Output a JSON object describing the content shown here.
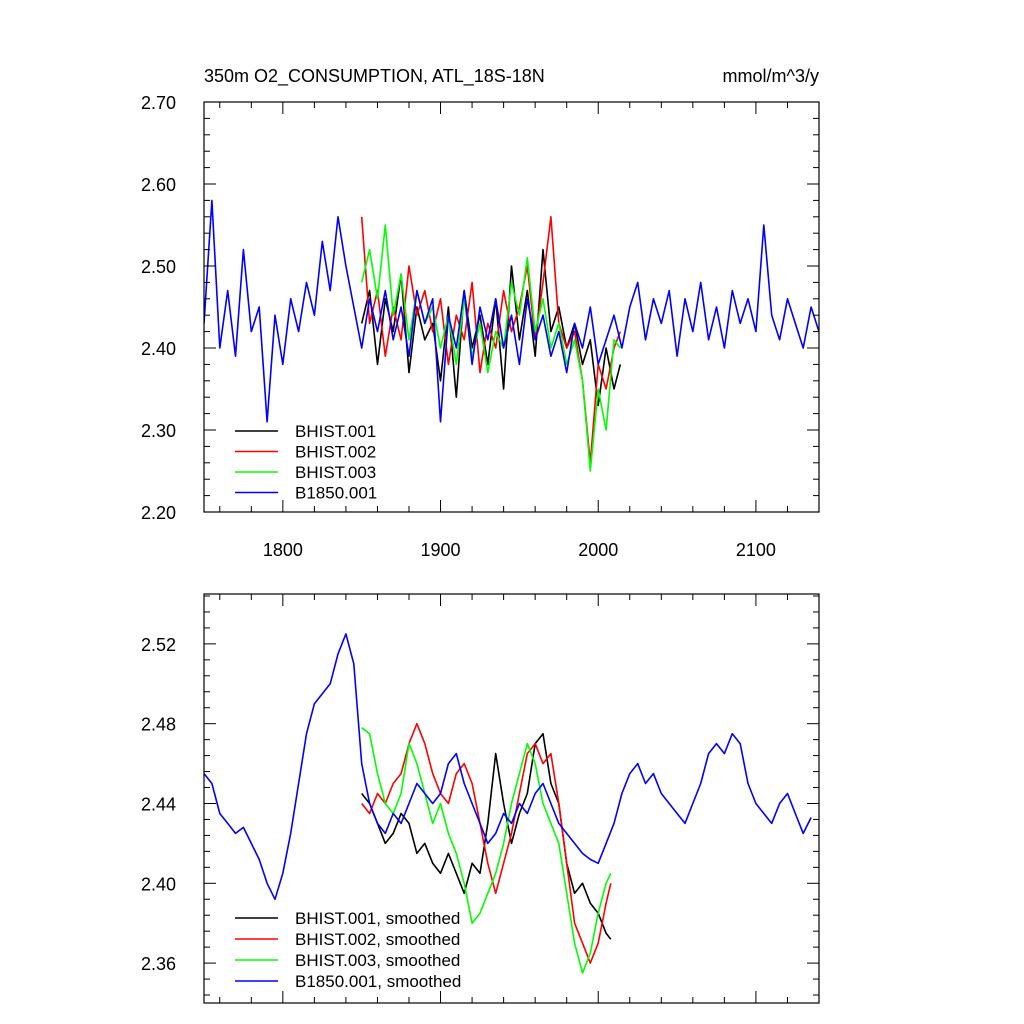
{
  "chart_data": [
    {
      "type": "line",
      "title": "350m O2_CONSUMPTION, ATL_18S-18N",
      "units": "mmol/m^3/y",
      "xlabel": "",
      "ylabel": "",
      "xlim": [
        1750,
        2140
      ],
      "ylim": [
        2.2,
        2.7
      ],
      "xticks": [
        1800,
        1900,
        2000,
        2100
      ],
      "xtick_labels": [
        "1800",
        "1900",
        "2000",
        "2100"
      ],
      "yticks": [
        2.2,
        2.3,
        2.4,
        2.5,
        2.6,
        2.7
      ],
      "ytick_labels": [
        "2.20",
        "2.30",
        "2.40",
        "2.50",
        "2.60",
        "2.70"
      ],
      "legend_position": "bottom-left",
      "series": [
        {
          "name": "BHIST.001",
          "color": "#000000",
          "x": [
            1850,
            1855,
            1860,
            1865,
            1870,
            1875,
            1880,
            1885,
            1890,
            1895,
            1900,
            1905,
            1910,
            1915,
            1920,
            1925,
            1930,
            1935,
            1940,
            1945,
            1950,
            1955,
            1960,
            1965,
            1970,
            1975,
            1980,
            1985,
            1990,
            1995,
            2000,
            2005,
            2010,
            2014
          ],
          "y": [
            2.43,
            2.47,
            2.38,
            2.46,
            2.42,
            2.49,
            2.37,
            2.45,
            2.41,
            2.43,
            2.36,
            2.45,
            2.34,
            2.47,
            2.4,
            2.44,
            2.38,
            2.46,
            2.35,
            2.5,
            2.41,
            2.47,
            2.39,
            2.52,
            2.42,
            2.45,
            2.4,
            2.43,
            2.38,
            2.41,
            2.33,
            2.4,
            2.35,
            2.38
          ]
        },
        {
          "name": "BHIST.002",
          "color": "#ff0000",
          "x": [
            1850,
            1855,
            1860,
            1865,
            1870,
            1875,
            1880,
            1885,
            1890,
            1895,
            1900,
            1905,
            1910,
            1915,
            1920,
            1925,
            1930,
            1935,
            1940,
            1945,
            1950,
            1955,
            1960,
            1965,
            1970,
            1975,
            1980,
            1985,
            1990,
            1995,
            2000,
            2005,
            2010,
            2014
          ],
          "y": [
            2.56,
            2.43,
            2.47,
            2.39,
            2.45,
            2.41,
            2.5,
            2.44,
            2.47,
            2.42,
            2.46,
            2.38,
            2.44,
            2.41,
            2.48,
            2.37,
            2.43,
            2.4,
            2.47,
            2.42,
            2.45,
            2.5,
            2.41,
            2.48,
            2.56,
            2.43,
            2.4,
            2.42,
            2.36,
            2.26,
            2.38,
            2.35,
            2.4,
            2.42
          ]
        },
        {
          "name": "BHIST.003",
          "color": "#00ff00",
          "x": [
            1850,
            1855,
            1860,
            1865,
            1870,
            1875,
            1880,
            1885,
            1890,
            1895,
            1900,
            1905,
            1910,
            1915,
            1920,
            1925,
            1930,
            1935,
            1940,
            1945,
            1950,
            1955,
            1960,
            1965,
            1970,
            1975,
            1980,
            1985,
            1990,
            1995,
            2000,
            2005,
            2010,
            2014
          ],
          "y": [
            2.48,
            2.52,
            2.46,
            2.55,
            2.44,
            2.49,
            2.41,
            2.47,
            2.43,
            2.45,
            2.4,
            2.44,
            2.38,
            2.46,
            2.39,
            2.43,
            2.37,
            2.42,
            2.4,
            2.48,
            2.44,
            2.51,
            2.42,
            2.46,
            2.4,
            2.43,
            2.38,
            2.41,
            2.36,
            2.25,
            2.35,
            2.3,
            2.41,
            2.4
          ]
        },
        {
          "name": "B1850.001",
          "color": "#0000ff",
          "x": [
            1750,
            1755,
            1760,
            1765,
            1770,
            1775,
            1780,
            1785,
            1790,
            1795,
            1800,
            1805,
            1810,
            1815,
            1820,
            1825,
            1830,
            1835,
            1840,
            1845,
            1850,
            1855,
            1860,
            1865,
            1870,
            1875,
            1880,
            1885,
            1890,
            1895,
            1900,
            1905,
            1910,
            1915,
            1920,
            1925,
            1930,
            1935,
            1940,
            1945,
            1950,
            1955,
            1960,
            1965,
            1970,
            1975,
            1980,
            1985,
            1990,
            1995,
            2000,
            2005,
            2010,
            2015,
            2020,
            2025,
            2030,
            2035,
            2040,
            2045,
            2050,
            2055,
            2060,
            2065,
            2070,
            2075,
            2080,
            2085,
            2090,
            2095,
            2100,
            2105,
            2110,
            2115,
            2120,
            2125,
            2130,
            2135,
            2140
          ],
          "y": [
            2.43,
            2.58,
            2.4,
            2.47,
            2.39,
            2.52,
            2.42,
            2.45,
            2.31,
            2.44,
            2.38,
            2.46,
            2.42,
            2.48,
            2.44,
            2.53,
            2.47,
            2.56,
            2.5,
            2.45,
            2.4,
            2.46,
            2.42,
            2.47,
            2.41,
            2.45,
            2.39,
            2.47,
            2.43,
            2.46,
            2.31,
            2.44,
            2.4,
            2.47,
            2.38,
            2.45,
            2.41,
            2.46,
            2.4,
            2.44,
            2.38,
            2.46,
            2.41,
            2.44,
            2.39,
            2.42,
            2.37,
            2.43,
            2.4,
            2.45,
            2.38,
            2.41,
            2.44,
            2.4,
            2.45,
            2.48,
            2.41,
            2.46,
            2.43,
            2.47,
            2.39,
            2.46,
            2.42,
            2.48,
            2.41,
            2.45,
            2.4,
            2.47,
            2.43,
            2.46,
            2.42,
            2.55,
            2.44,
            2.41,
            2.46,
            2.43,
            2.4,
            2.45,
            2.42
          ]
        }
      ]
    },
    {
      "type": "line",
      "title": "",
      "xlabel": "",
      "ylabel": "",
      "xlim": [
        1750,
        2140
      ],
      "ylim": [
        2.34,
        2.545
      ],
      "xticks": [
        1800,
        1900,
        2000,
        2100
      ],
      "yticks": [
        2.36,
        2.4,
        2.44,
        2.48,
        2.52
      ],
      "ytick_labels": [
        "2.36",
        "2.40",
        "2.44",
        "2.48",
        "2.52"
      ],
      "legend_position": "bottom-left",
      "series": [
        {
          "name": "BHIST.001, smoothed",
          "color": "#000000",
          "x": [
            1850,
            1855,
            1860,
            1865,
            1870,
            1875,
            1880,
            1885,
            1890,
            1895,
            1900,
            1905,
            1910,
            1915,
            1920,
            1925,
            1930,
            1935,
            1940,
            1945,
            1950,
            1955,
            1960,
            1965,
            1970,
            1975,
            1980,
            1985,
            1990,
            1995,
            2000,
            2005,
            2008
          ],
          "y": [
            2.445,
            2.44,
            2.43,
            2.42,
            2.425,
            2.435,
            2.43,
            2.415,
            2.42,
            2.41,
            2.405,
            2.415,
            2.405,
            2.395,
            2.41,
            2.405,
            2.43,
            2.465,
            2.44,
            2.42,
            2.435,
            2.445,
            2.47,
            2.475,
            2.45,
            2.44,
            2.41,
            2.395,
            2.4,
            2.39,
            2.385,
            2.375,
            2.372
          ]
        },
        {
          "name": "BHIST.002, smoothed",
          "color": "#ff0000",
          "x": [
            1850,
            1855,
            1860,
            1865,
            1870,
            1875,
            1880,
            1885,
            1890,
            1895,
            1900,
            1905,
            1910,
            1915,
            1920,
            1925,
            1930,
            1935,
            1940,
            1945,
            1950,
            1955,
            1960,
            1965,
            1970,
            1975,
            1980,
            1985,
            1990,
            1995,
            2000,
            2005,
            2008
          ],
          "y": [
            2.44,
            2.435,
            2.445,
            2.44,
            2.45,
            2.455,
            2.47,
            2.48,
            2.47,
            2.455,
            2.445,
            2.44,
            2.455,
            2.46,
            2.45,
            2.43,
            2.41,
            2.395,
            2.41,
            2.425,
            2.445,
            2.465,
            2.47,
            2.46,
            2.465,
            2.44,
            2.41,
            2.38,
            2.37,
            2.36,
            2.37,
            2.39,
            2.4
          ]
        },
        {
          "name": "BHIST.003, smoothed",
          "color": "#00ff00",
          "x": [
            1850,
            1855,
            1860,
            1865,
            1870,
            1875,
            1880,
            1885,
            1890,
            1895,
            1900,
            1905,
            1910,
            1915,
            1920,
            1925,
            1930,
            1935,
            1940,
            1945,
            1950,
            1955,
            1960,
            1965,
            1970,
            1975,
            1980,
            1985,
            1990,
            1995,
            2000,
            2005,
            2008
          ],
          "y": [
            2.478,
            2.475,
            2.455,
            2.44,
            2.435,
            2.445,
            2.47,
            2.46,
            2.445,
            2.43,
            2.44,
            2.425,
            2.415,
            2.4,
            2.38,
            2.385,
            2.395,
            2.405,
            2.42,
            2.44,
            2.455,
            2.47,
            2.46,
            2.44,
            2.43,
            2.42,
            2.395,
            2.37,
            2.355,
            2.365,
            2.385,
            2.4,
            2.405
          ]
        },
        {
          "name": "B1850.001, smoothed",
          "color": "#0000ff",
          "x": [
            1750,
            1755,
            1760,
            1765,
            1770,
            1775,
            1780,
            1785,
            1790,
            1795,
            1800,
            1805,
            1810,
            1815,
            1820,
            1825,
            1830,
            1835,
            1840,
            1845,
            1850,
            1855,
            1860,
            1865,
            1870,
            1875,
            1880,
            1885,
            1890,
            1895,
            1900,
            1905,
            1910,
            1915,
            1920,
            1925,
            1930,
            1935,
            1940,
            1945,
            1950,
            1955,
            1960,
            1965,
            1970,
            1975,
            1980,
            1985,
            1990,
            1995,
            2000,
            2005,
            2010,
            2015,
            2020,
            2025,
            2030,
            2035,
            2040,
            2045,
            2050,
            2055,
            2060,
            2065,
            2070,
            2075,
            2080,
            2085,
            2090,
            2095,
            2100,
            2105,
            2110,
            2115,
            2120,
            2125,
            2130,
            2135
          ],
          "y": [
            2.455,
            2.45,
            2.435,
            2.43,
            2.425,
            2.428,
            2.42,
            2.412,
            2.4,
            2.392,
            2.405,
            2.425,
            2.45,
            2.475,
            2.49,
            2.495,
            2.5,
            2.515,
            2.525,
            2.51,
            2.46,
            2.44,
            2.43,
            2.425,
            2.435,
            2.43,
            2.44,
            2.45,
            2.445,
            2.44,
            2.445,
            2.46,
            2.465,
            2.45,
            2.44,
            2.43,
            2.42,
            2.425,
            2.435,
            2.43,
            2.44,
            2.435,
            2.445,
            2.45,
            2.44,
            2.43,
            2.425,
            2.42,
            2.415,
            2.412,
            2.41,
            2.42,
            2.43,
            2.445,
            2.455,
            2.46,
            2.45,
            2.455,
            2.445,
            2.44,
            2.435,
            2.43,
            2.44,
            2.45,
            2.465,
            2.47,
            2.465,
            2.475,
            2.47,
            2.45,
            2.44,
            2.435,
            2.43,
            2.44,
            2.445,
            2.435,
            2.425,
            2.433
          ]
        }
      ]
    }
  ]
}
